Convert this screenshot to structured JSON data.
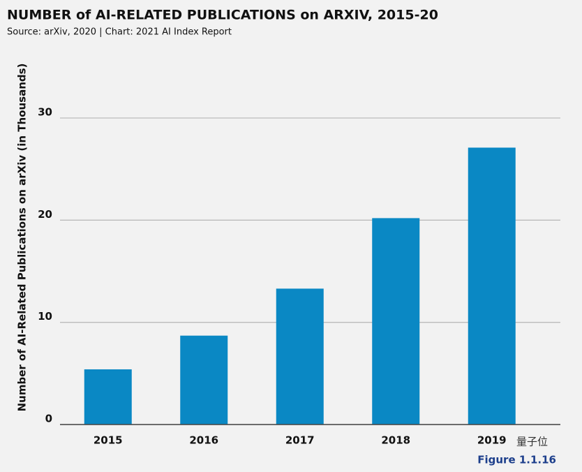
{
  "chart_data": {
    "type": "bar",
    "title": "NUMBER of AI-RELATED PUBLICATIONS on ARXIV, 2015-20",
    "subtitle": "Source: arXiv, 2020 | Chart: 2021 AI Index Report",
    "y_label": "Number of AI-Related Publications on arXiv (in Thousands)",
    "categories": [
      "2015",
      "2016",
      "2017",
      "2018",
      "2019"
    ],
    "values": [
      5.4,
      8.7,
      13.3,
      20.2,
      27.1
    ],
    "color": "#0a88c4",
    "ylim": [
      0,
      30
    ],
    "yticks": [
      0,
      10,
      20,
      30
    ],
    "grid": true,
    "figure_label": "Figure 1.1.16",
    "watermark": "量子位"
  }
}
